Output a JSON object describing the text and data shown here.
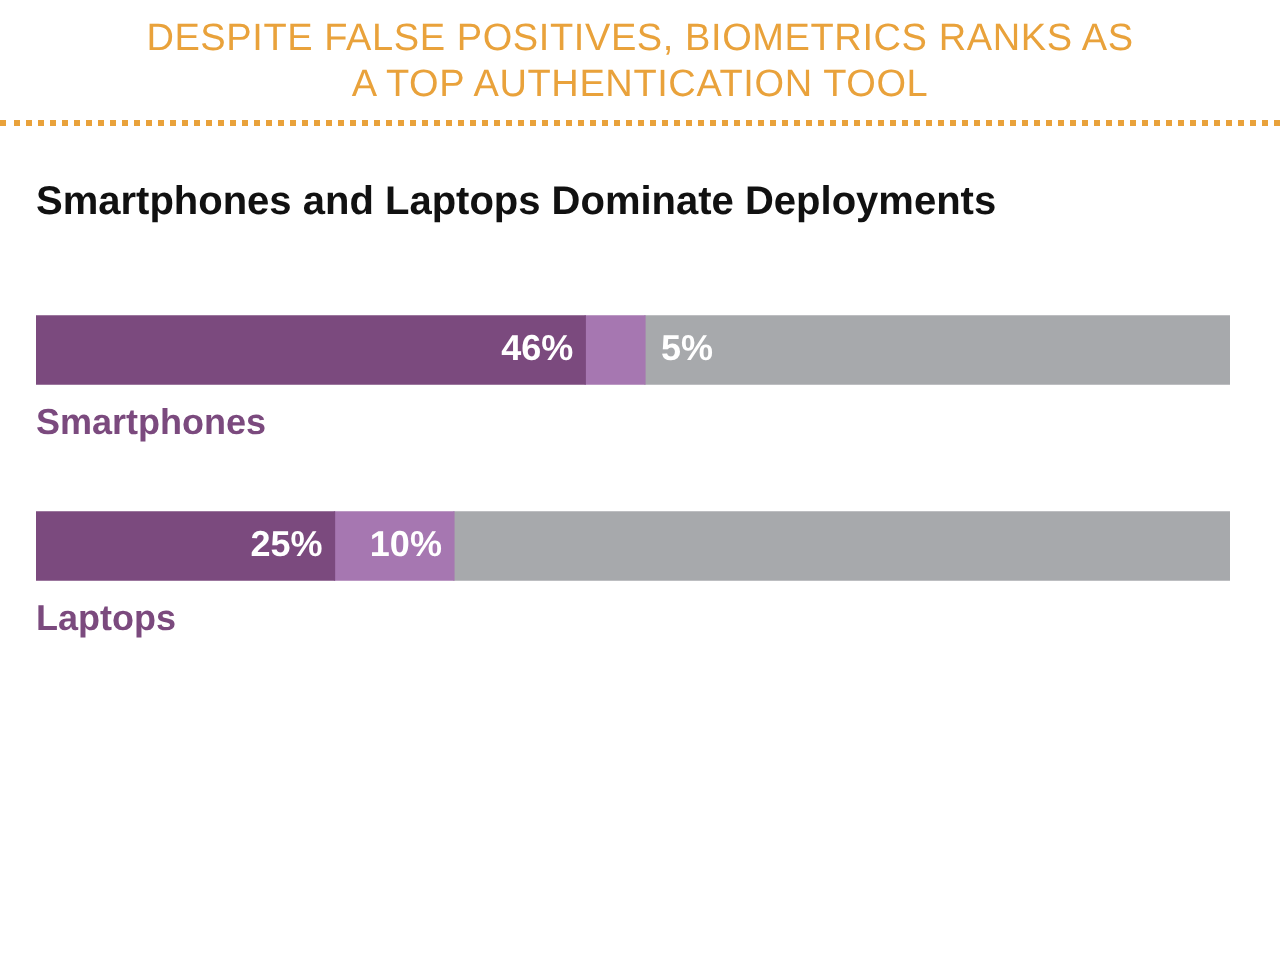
{
  "chart_data": {
    "type": "bar",
    "orientation": "horizontal",
    "stacked": true,
    "title": "DESPITE FALSE POSITIVES, BIOMETRICS RANKS AS A TOP AUTHENTICATION TOOL",
    "subtitle": "Smartphones and Laptops Dominate Deployments",
    "categories": [
      "Smartphones",
      "Laptops"
    ],
    "series": [
      {
        "color": "#7b4a7e",
        "values": [
          46,
          25
        ],
        "value_labels": [
          "46%",
          "25%"
        ]
      },
      {
        "color": "#a677b1",
        "values": [
          5,
          10
        ],
        "value_labels": [
          "5%",
          "10%"
        ]
      },
      {
        "color": "#a7a9ac",
        "values": [
          49,
          65
        ],
        "value_labels": [
          null,
          null
        ]
      }
    ],
    "legend": false,
    "tick_labels": false
  }
}
